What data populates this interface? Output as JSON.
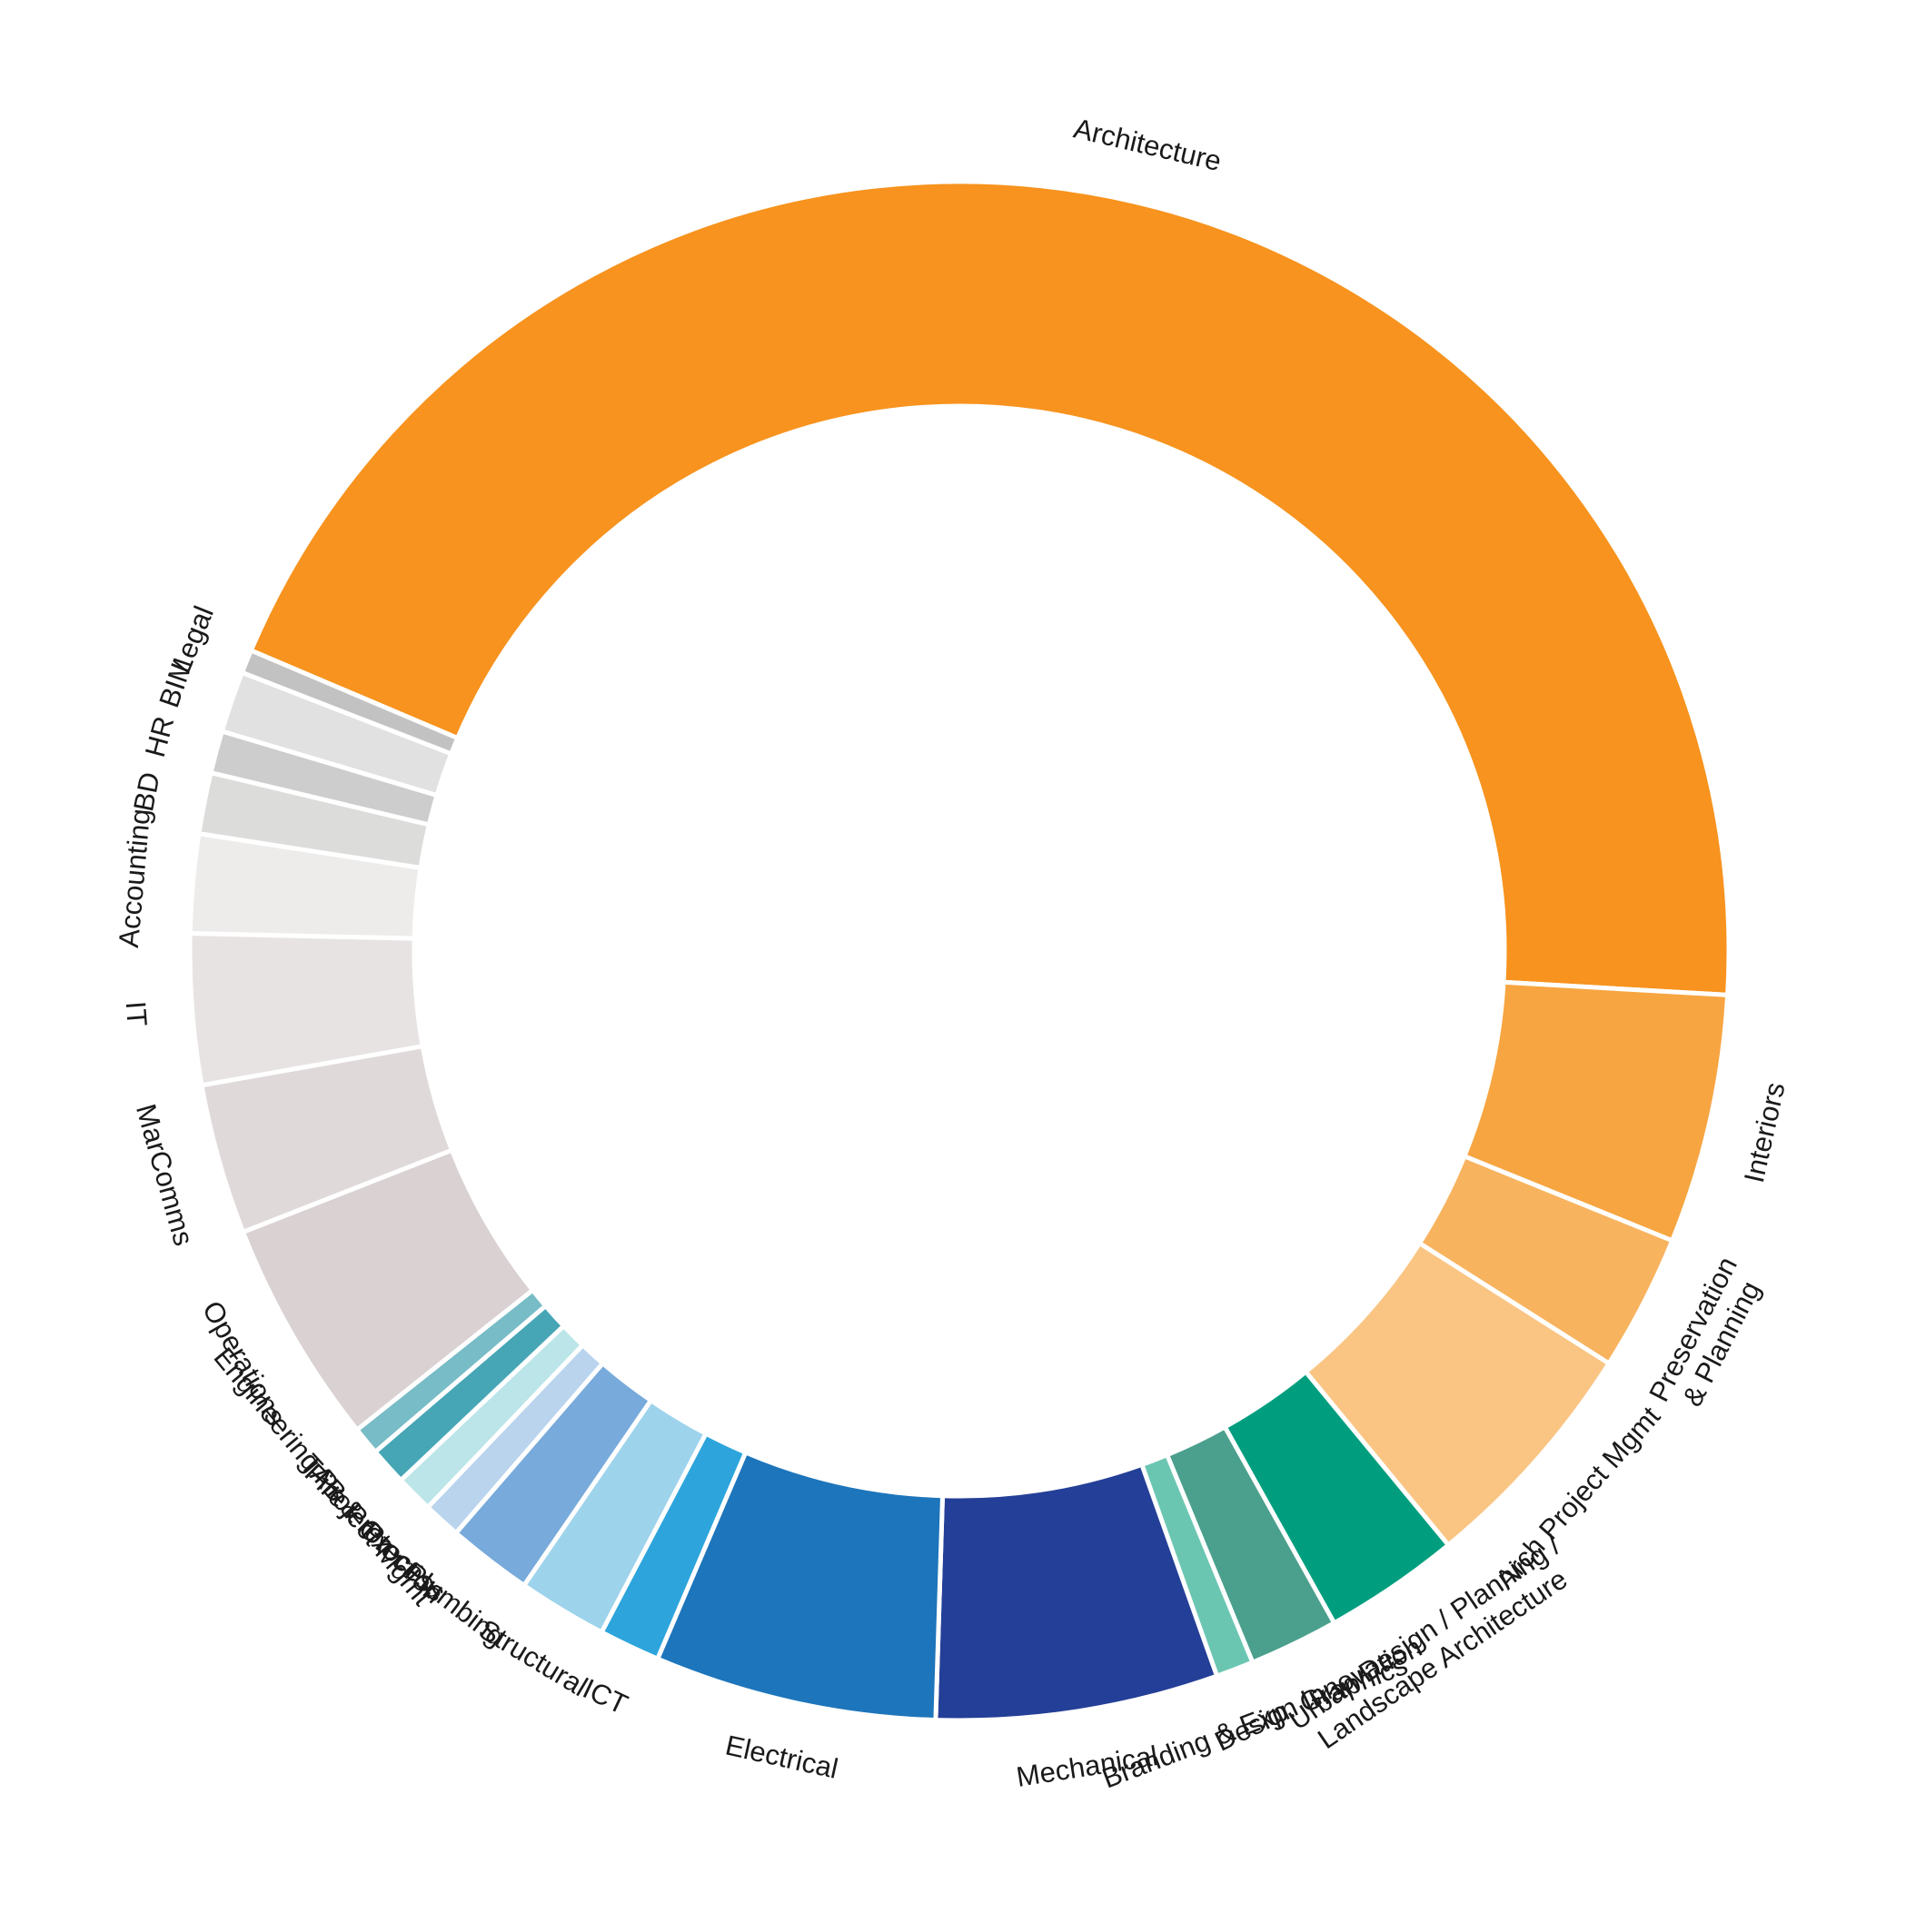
{
  "chart_data": {
    "type": "pie",
    "variant": "donut",
    "title": "",
    "start_angle_deg": -67,
    "direction": "clockwise",
    "slices": [
      {
        "label": "Architecture",
        "value": 45.1,
        "color": "#F7931E"
      },
      {
        "label": "Interiors",
        "value": 5.3,
        "color": "#F7A541"
      },
      {
        "label": "Preservation\n& Planning",
        "value": 2.9,
        "color": "#F8B35F"
      },
      {
        "label": "Arch Project Mgmt",
        "value": 5.1,
        "color": "#FAC583"
      },
      {
        "label": "Urban Design / Planning /\nLandscape Architecture",
        "value": 2.9,
        "color": "#009E7F"
      },
      {
        "label": "Design Innovation",
        "value": 1.9,
        "color": "#4BA08D"
      },
      {
        "label": "Branding & Exp. Graphics",
        "value": 0.8,
        "color": "#6AC6B1"
      },
      {
        "label": "Mechanical",
        "value": 6.0,
        "color": "#243F97"
      },
      {
        "label": "Electrical",
        "value": 6.0,
        "color": "#1D75BB"
      },
      {
        "label": "ICT",
        "value": 1.3,
        "color": "#2DA5DC"
      },
      {
        "label": "Structural",
        "value": 1.9,
        "color": "#9ED3EC"
      },
      {
        "label": "Plumbing",
        "value": 1.8,
        "color": "#78AADB"
      },
      {
        "label": "Process",
        "value": 0.8,
        "color": "#BAD4EE"
      },
      {
        "label": "Fire Protection",
        "value": 0.8,
        "color": "#BCE5E9"
      },
      {
        "label": "TAB & Cx",
        "value": 0.8,
        "color": "#46A6B6"
      },
      {
        "label": "Engineering Project Mgmt",
        "value": 0.6,
        "color": "#77BCC6"
      },
      {
        "label": "Operations",
        "value": 4.8,
        "color": "#DAD1D2"
      },
      {
        "label": "MarComms",
        "value": 3.2,
        "color": "#E0D9DA"
      },
      {
        "label": "IT",
        "value": 3.2,
        "color": "#E8E3E3"
      },
      {
        "label": "Accounting",
        "value": 2.1,
        "color": "#EEECEB"
      },
      {
        "label": "BD",
        "value": 1.3,
        "color": "#DCDCDB"
      },
      {
        "label": "HR",
        "value": 0.9,
        "color": "#CDCDCD"
      },
      {
        "label": "BIM",
        "value": 1.3,
        "color": "#E1E1E1"
      },
      {
        "label": "Legal",
        "value": 0.5,
        "color": "#C2C2C2"
      }
    ]
  }
}
